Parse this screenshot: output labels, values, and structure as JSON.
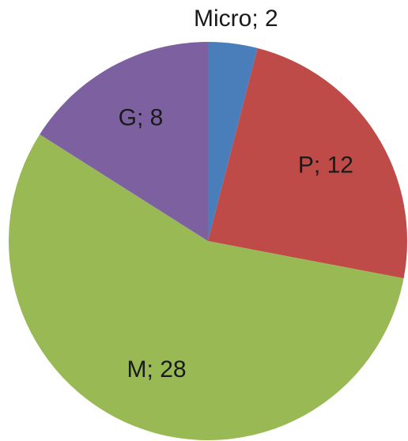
{
  "chart_data": {
    "type": "pie",
    "categories": [
      "Micro",
      "P",
      "M",
      "G"
    ],
    "values": [
      2,
      12,
      28,
      8
    ],
    "value_labels": [
      "Micro; 2",
      "P; 12",
      "M; 28",
      "G; 8"
    ],
    "colors": [
      "#4a7ebb",
      "#be4b48",
      "#98b954",
      "#7d60a0"
    ]
  }
}
